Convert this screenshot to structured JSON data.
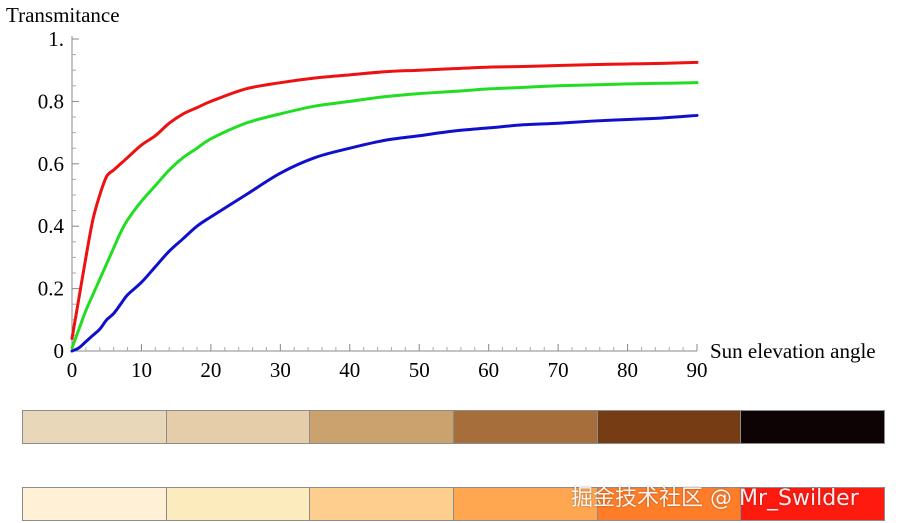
{
  "chart_data": {
    "type": "line",
    "title": "",
    "xlabel": "Sun elevation angle",
    "ylabel": "Transmitance",
    "xlim": [
      0,
      90
    ],
    "ylim": [
      0,
      1
    ],
    "x_ticks": [
      0,
      10,
      20,
      30,
      40,
      50,
      60,
      70,
      80,
      90
    ],
    "x_tick_labels": [
      "0",
      "10",
      "20",
      "30",
      "40",
      "50",
      "60",
      "70",
      "80",
      "90"
    ],
    "y_ticks": [
      0,
      0.2,
      0.4,
      0.6,
      0.8,
      1
    ],
    "y_tick_labels": [
      "0",
      "0.2",
      "0.4",
      "0.6",
      "0.8",
      "1."
    ],
    "x": [
      0,
      1,
      2,
      3,
      4,
      5,
      6,
      7,
      8,
      10,
      12,
      14,
      16,
      18,
      20,
      25,
      30,
      35,
      40,
      45,
      50,
      55,
      60,
      65,
      70,
      75,
      80,
      85,
      90
    ],
    "series": [
      {
        "color": "#ee1111",
        "values": [
          0.04,
          0.17,
          0.3,
          0.42,
          0.5,
          0.56,
          0.58,
          0.6,
          0.62,
          0.66,
          0.69,
          0.73,
          0.76,
          0.78,
          0.8,
          0.84,
          0.86,
          0.875,
          0.885,
          0.895,
          0.9,
          0.905,
          0.91,
          0.912,
          0.915,
          0.918,
          0.92,
          0.922,
          0.925
        ]
      },
      {
        "color": "#22dd22",
        "values": [
          0.01,
          0.07,
          0.13,
          0.18,
          0.23,
          0.28,
          0.33,
          0.38,
          0.42,
          0.48,
          0.53,
          0.58,
          0.62,
          0.65,
          0.68,
          0.73,
          0.76,
          0.785,
          0.8,
          0.815,
          0.825,
          0.832,
          0.84,
          0.845,
          0.85,
          0.853,
          0.856,
          0.858,
          0.86
        ]
      },
      {
        "color": "#1010cc",
        "values": [
          0.0,
          0.01,
          0.03,
          0.05,
          0.07,
          0.1,
          0.12,
          0.15,
          0.18,
          0.22,
          0.27,
          0.32,
          0.36,
          0.4,
          0.43,
          0.5,
          0.57,
          0.62,
          0.65,
          0.675,
          0.69,
          0.705,
          0.715,
          0.725,
          0.73,
          0.737,
          0.742,
          0.747,
          0.755
        ]
      }
    ]
  },
  "strips": [
    [
      "#e9d7b9",
      "#e4cda8",
      "#cba16d",
      "#a56e3a",
      "#763c13",
      "#0d0304"
    ],
    [
      "#fff0d6",
      "#fcebbd",
      "#fece8e",
      "#ffa651",
      "#ff7d28",
      "#ff1a10"
    ]
  ],
  "watermark": "掘金技术社区 @ Mr_Swilder"
}
